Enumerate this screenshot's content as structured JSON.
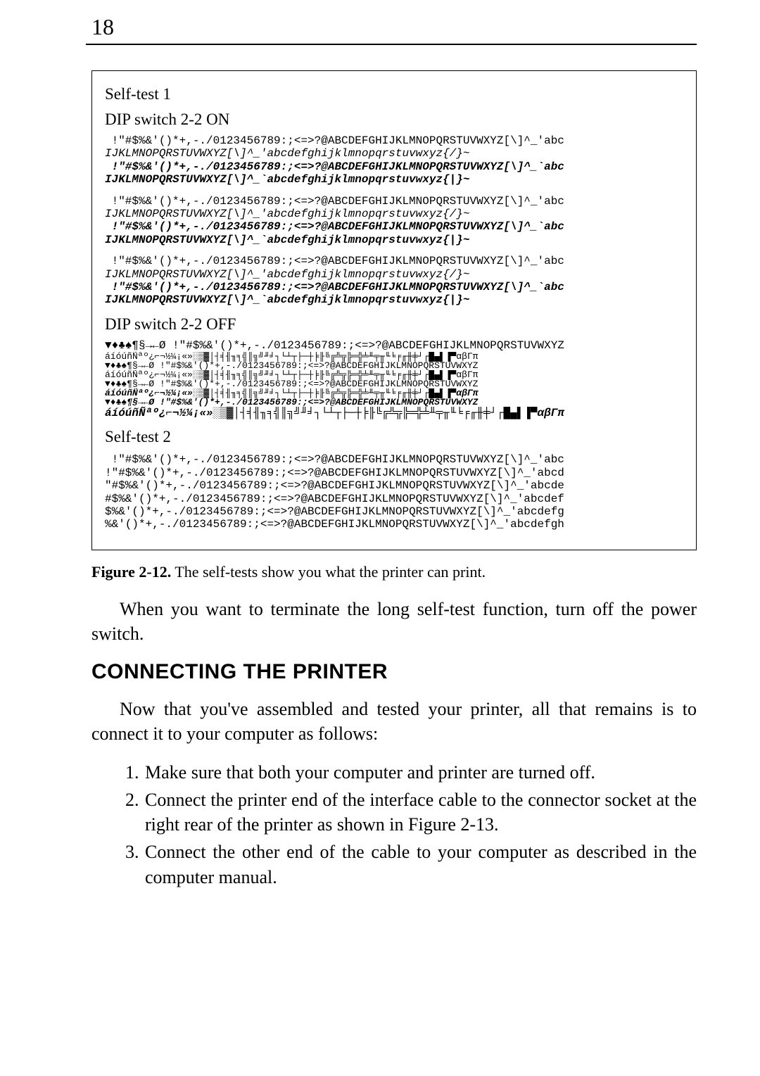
{
  "page_number": "18",
  "figure": {
    "selftest1_title": "Self-test 1",
    "dip_on_title": "DIP switch 2-2 ON",
    "dip_off_title": "DIP switch 2-2 OFF",
    "selftest2_title": "Self-test 2",
    "mono_on_1a": " !\"#$%&'()*+,-./0123456789:;<=>?@ABCDEFGHIJKLMNOPQRSTUVWXYZ[\\]^_'abc",
    "mono_on_1b": "IJKLMNOPQRSTUVWXYZ[\\]^_'abcdefghijklmnopqrstuvwxyz{/}~",
    "mono_on_1c": " !\"#$%&'()*+,-./0123456789:;<=>?@ABCDEFGHIJKLMNOPQRSTUVWXYZ[\\]^_`abc",
    "mono_on_1d": "IJKLMNOPQRSTUVWXYZ[\\]^_`abcdefghijklmnopqrstuvwxyz{|}~",
    "mono_on_2a": " !\"#$%&'()*+,-./0123456789:;<=>?@ABCDEFGHIJKLMNOPQRSTUVWXYZ[\\]^_'abc",
    "mono_on_2b": "IJKLMNOPQRSTUVWXYZ[\\]^_'abcdefghijklmnopqrstuvwxyz{/}~",
    "mono_on_2c": " !\"#$%&'()*+,-./0123456789:;<=>?@ABCDEFGHIJKLMNOPQRSTUVWXYZ[\\]^_`abc",
    "mono_on_2d": "IJKLMNOPQRSTUVWXYZ[\\]^_`abcdefghijklmnopqrstuvwxyz{|}~",
    "mono_on_3a": " !\"#$%&'()*+,-./0123456789:;<=>?@ABCDEFGHIJKLMNOPQRSTUVWXYZ[\\]^_'abc",
    "mono_on_3b": "IJKLMNOPQRSTUVWXYZ[\\]^_'abcdefghijklmnopqrstuvwxyz{/}~",
    "mono_on_3c": " !\"#$%&'()*+,-./0123456789:;<=>?@ABCDEFGHIJKLMNOPQRSTUVWXYZ[\\]^_`abc",
    "mono_on_3d": "IJKLMNOPQRSTUVWXYZ[\\]^_`abcdefghijklmnopqrstuvwxyz{|}~",
    "mono_off_1": "▼♦♣♠¶§→←Ø !\"#$%&'()*+,-./0123456789:;<=>?@ABCDEFGHIJKLMNOPQRSTUVWXYZ",
    "mono_off_2": "áíóúñÑªº¿⌐¬½¼¡«»░▒▓│┤╡╢╖╕╣║╗╝╜╛┐└┴┬├─┼╞╟╚╔╩╦╠═╬╧╨╤╥╙╘╒╓╫╪┘┌█▄▌▐▀αβΓπ",
    "mono_off_3": "▼♦♣♠¶§→←Ø !\"#$%&'()*+,-./0123456789:;<=>?@ABCDEFGHIJKLMNOPQRSTUVWXYZ",
    "mono_off_4": "áíóúñÑªº¿⌐¬½¼¡«»░▒▓│┤╡╢╖╕╣║╗╝╜╛┐└┴┬├─┼╞╟╚╔╩╦╠═╬╧╨╤╥╙╘╒╓╫╪┘┌█▄▌▐▀αβΓπ",
    "mono_off_5": "▼♦♣♠¶§→←Ø !\"#$%&'()*+,-./0123456789:;<=>?@ABCDEFGHIJKLMNOPQRSTUVWXYZ",
    "mono_off_6": "áíóúñÑªº¿⌐¬½¼¡«»░▒▓│┤╡╢╖╕╣║╗╝╜╛┐└┴┬├─┼╞╟╚╔╩╦╠═╬╧╨╤╥╙╘╒╓╫╪┘┌█▄▌▐▀αβΓπ",
    "mono_off_7": "▼♦♣♠¶§→←Ø !\"#$%&'()*+,-./0123456789:;<=>?@ABCDEFGHIJKLMNOPQRSTUVWXYZ",
    "mono_off_8": "áíóúñÑªº¿⌐¬½¼¡«»░▒▓│┤╡╢╖╕╣║╗╝╜╛┐└┴┬├─┼╞╟╚╔╩╦╠═╬╧╨╤╥╙╘╒╓╫╪┘┌█▄▌▐▀αβΓπ",
    "mono_st2_1": " !\"#$%&'()*+,-./0123456789:;<=>?@ABCDEFGHIJKLMNOPQRSTUVWXYZ[\\]^_'abc",
    "mono_st2_2": "!\"#$%&'()*+,-./0123456789:;<=>?@ABCDEFGHIJKLMNOPQRSTUVWXYZ[\\]^_'abcd",
    "mono_st2_3": "\"#$%&'()*+,-./0123456789:;<=>?@ABCDEFGHIJKLMNOPQRSTUVWXYZ[\\]^_'abcde",
    "mono_st2_4": "#$%&'()*+,-./0123456789:;<=>?@ABCDEFGHIJKLMNOPQRSTUVWXYZ[\\]^_'abcdef",
    "mono_st2_5": "$%&'()*+,-./0123456789:;<=>?@ABCDEFGHIJKLMNOPQRSTUVWXYZ[\\]^_'abcdefg",
    "mono_st2_6": "%&'()*+,-./0123456789:;<=>?@ABCDEFGHIJKLMNOPQRSTUVWXYZ[\\]^_'abcdefgh"
  },
  "caption_label": "Figure 2-12.",
  "caption_text": "  The self-tests show you what the printer can print.",
  "para1": "When you want to terminate the long self-test function, turn off the power switch.",
  "section_title": "CONNECTING THE PRINTER",
  "para2": "Now that you've assembled and tested your printer, all that remains is to connect it to your computer as follows:",
  "steps": {
    "s1": "Make sure that both your computer and printer are turned off.",
    "s2": "Connect the printer end of the interface cable to the connector socket at the right rear of the printer as shown in Figure 2-13.",
    "s3": "Connect the other end of the cable to your computer as described in the computer manual."
  }
}
